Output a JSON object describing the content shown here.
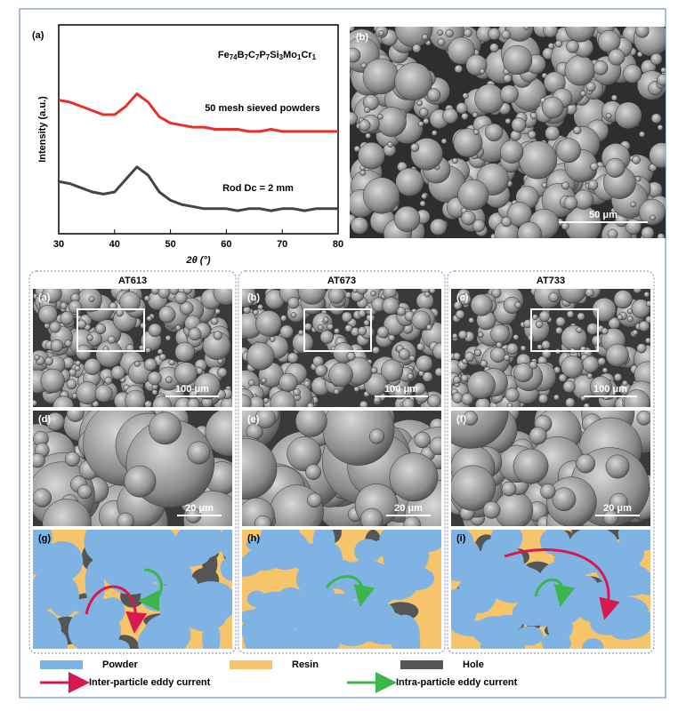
{
  "chart_data": {
    "type": "line",
    "label": "(a)",
    "formula": "Fe74B7C7P7Si3Mo1Cr1",
    "xlabel": "2θ (°)",
    "ylabel": "Intensity (a.u.)",
    "x": [
      30,
      32,
      34,
      36,
      38,
      40,
      42,
      44,
      46,
      48,
      50,
      52,
      54,
      56,
      58,
      60,
      62,
      64,
      66,
      68,
      70,
      72,
      74,
      76,
      78,
      80
    ],
    "series": [
      {
        "name": "50 mesh sieved powders",
        "color": "#e8302a",
        "values": [
          64,
          63,
          61,
          59,
          57,
          57,
          61,
          67,
          63,
          56,
          53,
          52,
          51,
          51,
          50,
          50,
          50,
          49,
          49,
          50,
          49,
          49,
          49,
          49,
          49,
          49
        ]
      },
      {
        "name": "Rod Dc = 2 mm",
        "color": "#444444",
        "values": [
          25,
          24,
          22,
          20,
          19,
          20,
          26,
          32,
          28,
          20,
          16,
          14,
          13,
          12,
          12,
          12,
          11,
          12,
          12,
          11,
          12,
          12,
          11,
          12,
          12,
          12
        ]
      }
    ],
    "xlim": [
      30,
      80
    ],
    "xticks": [
      30,
      40,
      50,
      60,
      70,
      80
    ],
    "ylim": [
      0,
      100
    ]
  },
  "panel_b": {
    "label": "(b)",
    "scale": "50 μm"
  },
  "columns": [
    {
      "title": "AT613",
      "panels": [
        {
          "label": "(a)",
          "scale": "100 μm"
        },
        {
          "label": "(d)",
          "scale": "20 μm"
        },
        {
          "label": "(g)"
        }
      ]
    },
    {
      "title": "AT673",
      "panels": [
        {
          "label": "(b)",
          "scale": "100 μm"
        },
        {
          "label": "(e)",
          "scale": "20 μm"
        },
        {
          "label": "(h)"
        }
      ]
    },
    {
      "title": "AT733",
      "panels": [
        {
          "label": "(c)",
          "scale": "100 μm"
        },
        {
          "label": "(f)",
          "scale": "20 μm"
        },
        {
          "label": "(i)"
        }
      ]
    }
  ],
  "legend": [
    {
      "label": "Powder"
    },
    {
      "label": "Resin"
    },
    {
      "label": "Hole"
    },
    {
      "label": "Inter-particle eddy current"
    },
    {
      "label": "Intra-particle eddy current"
    }
  ]
}
